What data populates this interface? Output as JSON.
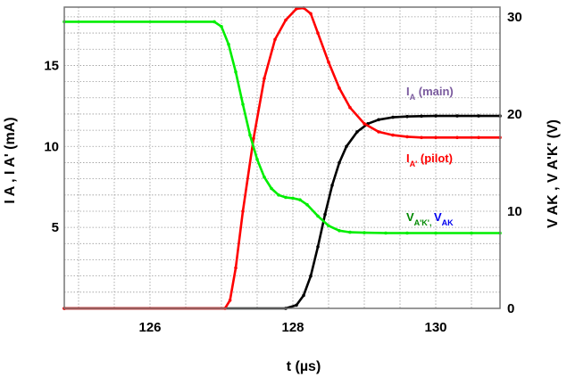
{
  "chart_data": {
    "type": "line",
    "xlabel": "t (µs) ",
    "ylabel": "I A , I A' (mA) ",
    "y2label": "V AK , V A'K' (V)",
    "xlim": [
      124.8,
      130.9
    ],
    "ylim": [
      0,
      18.6
    ],
    "y2lim": [
      0,
      31
    ],
    "grid": true,
    "x_ticks": [
      {
        "value": 126,
        "label": "126 "
      },
      {
        "value": 128,
        "label": "128 "
      },
      {
        "value": 130,
        "label": "130 "
      }
    ],
    "y_ticks": [
      {
        "value": 5,
        "label": "5 "
      },
      {
        "value": 10,
        "label": "10 "
      },
      {
        "value": 15,
        "label": "15 "
      }
    ],
    "y2_ticks": [
      {
        "value": 0,
        "label": "0 "
      },
      {
        "value": 10,
        "label": "10 "
      },
      {
        "value": 20,
        "label": "20 "
      },
      {
        "value": 30,
        "label": "30 "
      }
    ],
    "series": [
      {
        "axis": "left",
        "color": "#000000",
        "x": [
          124.8,
          127.9,
          128.05,
          128.15,
          128.25,
          128.35,
          128.45,
          128.55,
          128.65,
          128.75,
          128.9,
          129.05,
          129.2,
          129.4,
          129.6,
          129.8,
          130.0,
          130.3,
          130.6,
          130.9
        ],
        "y": [
          0,
          0,
          0.2,
          0.8,
          2.0,
          3.8,
          5.8,
          7.6,
          9.0,
          10.0,
          10.9,
          11.4,
          11.65,
          11.8,
          11.85,
          11.87,
          11.88,
          11.88,
          11.88,
          11.88
        ]
      },
      {
        "axis": "left",
        "color": "#ff0000",
        "x": [
          124.8,
          127.05,
          127.12,
          127.2,
          127.3,
          127.45,
          127.6,
          127.75,
          127.9,
          128.05,
          128.15,
          128.25,
          128.35,
          128.5,
          128.65,
          128.8,
          129.0,
          129.2,
          129.4,
          129.6,
          129.8,
          130.0,
          130.3,
          130.6,
          130.9
        ],
        "y": [
          0,
          0,
          0.5,
          2.5,
          6.0,
          10.5,
          14.2,
          16.6,
          17.8,
          18.5,
          18.55,
          18.2,
          17.0,
          15.2,
          13.6,
          12.4,
          11.4,
          10.9,
          10.7,
          10.6,
          10.55,
          10.55,
          10.55,
          10.55,
          10.55
        ]
      },
      {
        "axis": "left",
        "color": "#00ee00",
        "x": [
          124.8,
          126.9,
          127.0,
          127.1,
          127.2,
          127.3,
          127.4,
          127.5,
          127.6,
          127.7,
          127.8,
          127.9,
          128.0,
          128.1,
          128.2,
          128.35,
          128.5,
          128.65,
          128.8,
          129.0,
          129.3,
          129.6,
          130.0,
          130.5,
          130.9
        ],
        "y": [
          17.7,
          17.7,
          17.4,
          16.3,
          14.6,
          12.6,
          10.7,
          9.2,
          8.1,
          7.4,
          7.0,
          6.85,
          6.8,
          6.7,
          6.4,
          5.7,
          5.1,
          4.8,
          4.7,
          4.67,
          4.65,
          4.65,
          4.65,
          4.65,
          4.65
        ]
      }
    ],
    "annotations": [
      {
        "target": "black-curve",
        "parts": [
          {
            "text": "I",
            "color": "#7a5a9e",
            "sub": false
          },
          {
            "text": "A",
            "color": "#7a5a9e",
            "sub": true
          },
          {
            "text": " (main)",
            "color": "#7a5a9e",
            "sub": false
          },
          {
            "text": " ",
            "color": "#7a5a9e",
            "sub": true
          }
        ]
      },
      {
        "target": "red-curve",
        "parts": [
          {
            "text": "I",
            "color": "#ff0000",
            "sub": false
          },
          {
            "text": "A'",
            "color": "#ff0000",
            "sub": true
          },
          {
            "text": " (pilot)",
            "color": "#ff0000",
            "sub": false
          },
          {
            "text": " ",
            "color": "#ff0000",
            "sub": true
          }
        ]
      },
      {
        "target": "green-curve",
        "parts": [
          {
            "text": "V",
            "color": "#008800",
            "sub": false
          },
          {
            "text": "A'K', ",
            "color": "#008800",
            "sub": true
          },
          {
            "text": "V",
            "color": "#0000ee",
            "sub": false
          },
          {
            "text": "AK ",
            "color": "#0000ee",
            "sub": true
          }
        ]
      }
    ]
  }
}
